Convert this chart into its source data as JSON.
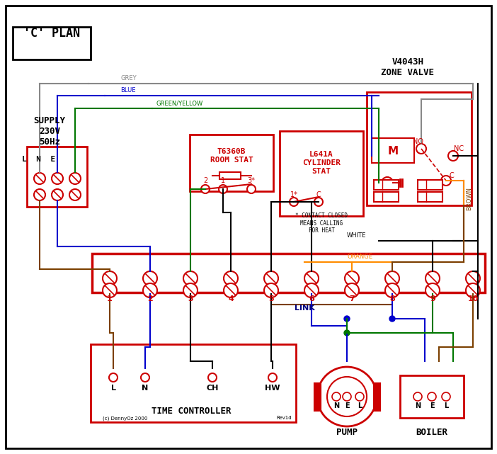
{
  "title": "'C' PLAN",
  "bg_color": "#ffffff",
  "border_color": "#000000",
  "red": "#cc0000",
  "dark_red": "#990000",
  "blue": "#0000cc",
  "green": "#007700",
  "grey": "#888888",
  "brown": "#7B3F00",
  "orange": "#FF8C00",
  "black": "#000000",
  "dark_blue": "#000080",
  "zone_valve_label": "V4043H\nZONE VALVE",
  "supply_label": "SUPPLY\n230V\n50Hz",
  "room_stat_label": "T6360B\nROOM STAT",
  "cyl_stat_label": "L641A\nCYLINDER\nSTAT",
  "tc_label": "TIME CONTROLLER",
  "pump_label": "PUMP",
  "boiler_label": "BOILER",
  "terminal_labels": [
    "1",
    "2",
    "3",
    "4",
    "5",
    "6",
    "7",
    "8",
    "9",
    "10"
  ],
  "link_label": "LINK",
  "contact_note": "* CONTACT CLOSED\nMEANS CALLING\nFOR HEAT",
  "copyright": "(c) DennyOz 2000",
  "rev": "Rev1d"
}
